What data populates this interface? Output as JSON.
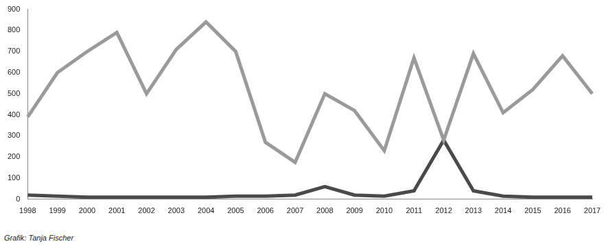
{
  "chart_data": {
    "type": "line",
    "categories": [
      "1998",
      "1999",
      "2000",
      "2001",
      "2002",
      "2003",
      "2004",
      "2005",
      "2006",
      "2007",
      "2008",
      "2009",
      "2010",
      "2011",
      "2012",
      "2013",
      "2014",
      "2015",
      "2016",
      "2017"
    ],
    "series": [
      {
        "color": "#9a9a9a",
        "values": [
          390,
          600,
          700,
          790,
          500,
          710,
          840,
          700,
          270,
          175,
          500,
          420,
          230,
          670,
          280,
          690,
          410,
          520,
          680,
          500
        ]
      },
      {
        "color": "#4a4a4a",
        "values": [
          20,
          15,
          10,
          10,
          10,
          10,
          10,
          15,
          15,
          20,
          60,
          20,
          15,
          40,
          280,
          40,
          15,
          10,
          10,
          10
        ]
      }
    ],
    "ylim": [
      0,
      900
    ],
    "yticks": [
      0,
      100,
      200,
      300,
      400,
      500,
      600,
      700,
      800,
      900
    ],
    "grid": false,
    "credit": "Grafik: Tanja Fischer"
  }
}
